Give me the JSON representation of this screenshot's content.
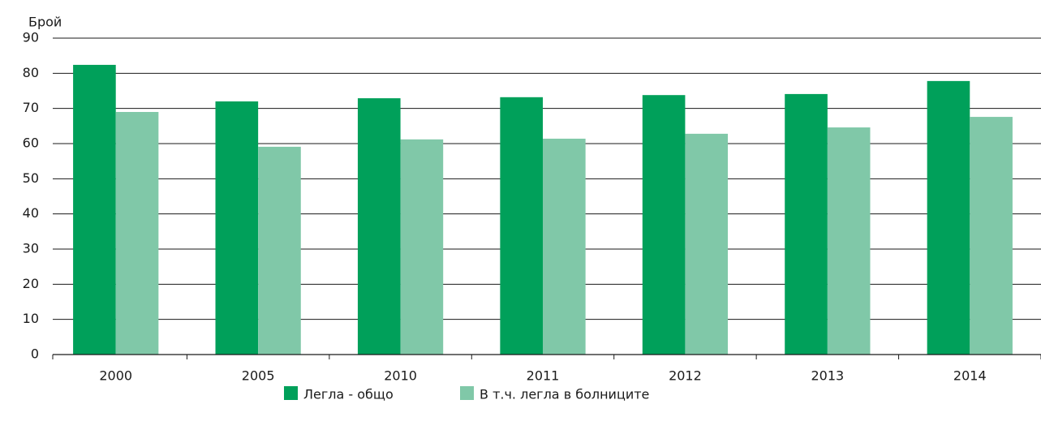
{
  "chart_data": {
    "type": "bar",
    "y_label": "Брой",
    "categories": [
      "2000",
      "2005",
      "2010",
      "2011",
      "2012",
      "2013",
      "2014"
    ],
    "series": [
      {
        "name": "Легла - общо",
        "color": "#00a05a",
        "values": [
          82.4,
          72.0,
          72.9,
          73.2,
          73.8,
          74.1,
          77.8
        ]
      },
      {
        "name": "В т.ч. легла в болниците",
        "color": "#80c8a8",
        "values": [
          69.0,
          59.1,
          61.2,
          61.4,
          62.8,
          64.6,
          67.6
        ]
      }
    ],
    "ylim": [
      0,
      90
    ],
    "yticks": [
      0,
      10,
      20,
      30,
      40,
      50,
      60,
      70,
      80,
      90
    ],
    "grid": true,
    "legend": "bottom"
  }
}
